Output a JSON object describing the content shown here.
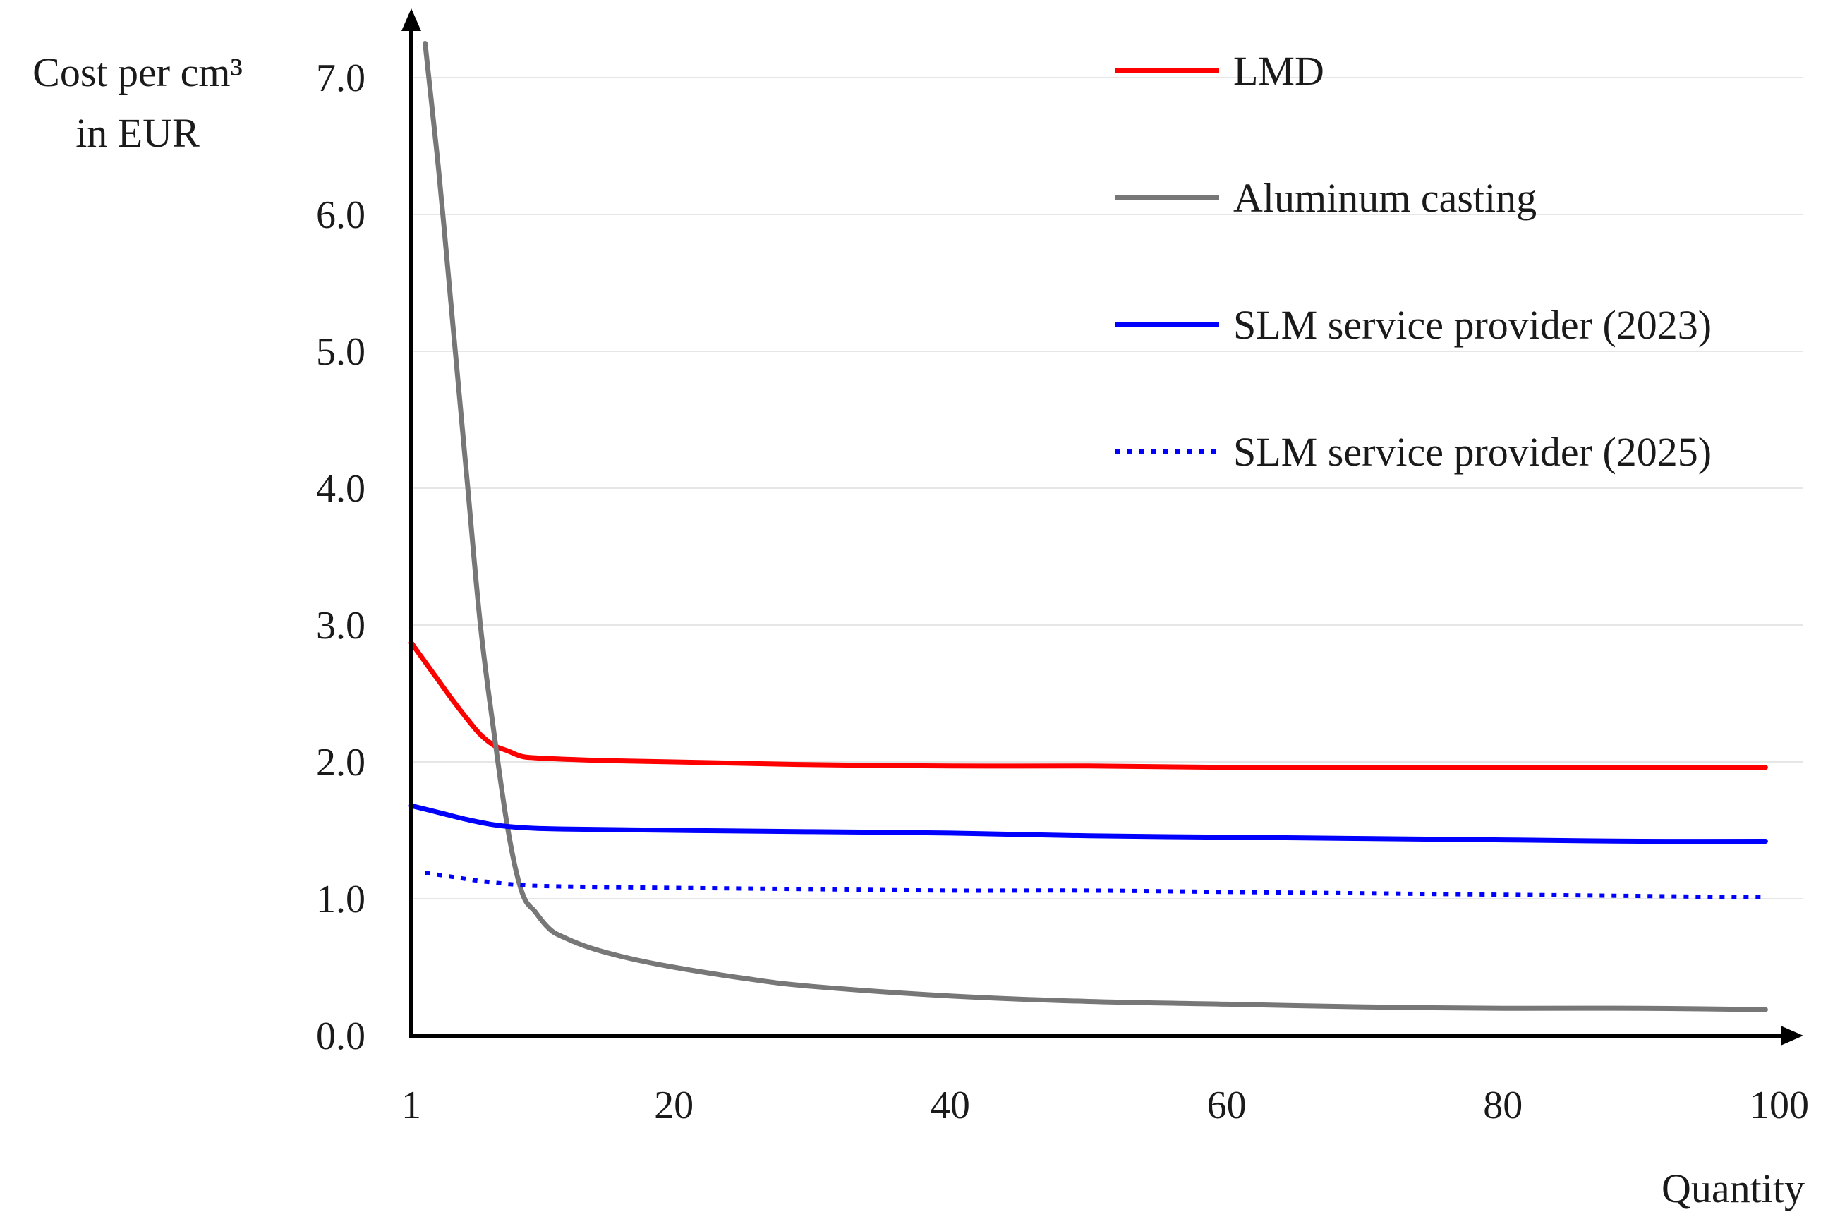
{
  "chart_data": {
    "type": "line",
    "title": "",
    "ylabel_line1": "Cost per cm³",
    "ylabel_line2": "in EUR",
    "xlabel": "Quantity",
    "xlim": [
      1,
      100
    ],
    "ylim": [
      0,
      7.0
    ],
    "x_ticks": [
      "1",
      "20",
      "40",
      "60",
      "80",
      "100"
    ],
    "x_tick_values": [
      1,
      20,
      40,
      60,
      80,
      100
    ],
    "y_ticks": [
      "0.0",
      "1.0",
      "2.0",
      "3.0",
      "4.0",
      "5.0",
      "6.0",
      "7.0"
    ],
    "y_tick_values": [
      0,
      1,
      2,
      3,
      4,
      5,
      6,
      7
    ],
    "grid": true,
    "legend_position": "top-right",
    "series": [
      {
        "name": "LMD",
        "color": "#ff0000",
        "style": "solid",
        "x": [
          1,
          2,
          3,
          4,
          5,
          6,
          7,
          8,
          9,
          10,
          12,
          15,
          20,
          30,
          40,
          50,
          60,
          70,
          80,
          90,
          99
        ],
        "y": [
          2.87,
          2.73,
          2.59,
          2.45,
          2.32,
          2.2,
          2.12,
          2.08,
          2.04,
          2.03,
          2.02,
          2.01,
          2.0,
          1.98,
          1.97,
          1.97,
          1.96,
          1.96,
          1.96,
          1.96,
          1.96
        ]
      },
      {
        "name": "Aluminum casting",
        "color": "#777777",
        "style": "solid",
        "x": [
          2,
          3,
          4,
          5,
          6,
          7,
          8,
          9,
          10,
          11,
          12,
          14,
          17,
          20,
          25,
          30,
          40,
          50,
          60,
          70,
          80,
          90,
          99
        ],
        "y": [
          7.25,
          6.3,
          5.2,
          4.1,
          3.0,
          2.2,
          1.5,
          1.05,
          0.9,
          0.78,
          0.72,
          0.64,
          0.56,
          0.5,
          0.42,
          0.36,
          0.29,
          0.25,
          0.23,
          0.21,
          0.2,
          0.2,
          0.19
        ]
      },
      {
        "name": "SLM service provider (2023)",
        "color": "#0000ff",
        "style": "solid",
        "x": [
          1,
          3,
          5,
          7,
          9,
          12,
          20,
          30,
          40,
          50,
          60,
          70,
          80,
          90,
          99
        ],
        "y": [
          1.68,
          1.63,
          1.58,
          1.54,
          1.52,
          1.51,
          1.5,
          1.49,
          1.48,
          1.46,
          1.45,
          1.44,
          1.43,
          1.42,
          1.42
        ]
      },
      {
        "name": "SLM service provider (2025)",
        "color": "#0000ff",
        "style": "dotted",
        "x": [
          2,
          4,
          6,
          9,
          12,
          20,
          30,
          40,
          50,
          60,
          70,
          80,
          90,
          99
        ],
        "y": [
          1.19,
          1.16,
          1.13,
          1.1,
          1.09,
          1.08,
          1.07,
          1.06,
          1.06,
          1.05,
          1.04,
          1.03,
          1.02,
          1.01
        ]
      }
    ]
  }
}
